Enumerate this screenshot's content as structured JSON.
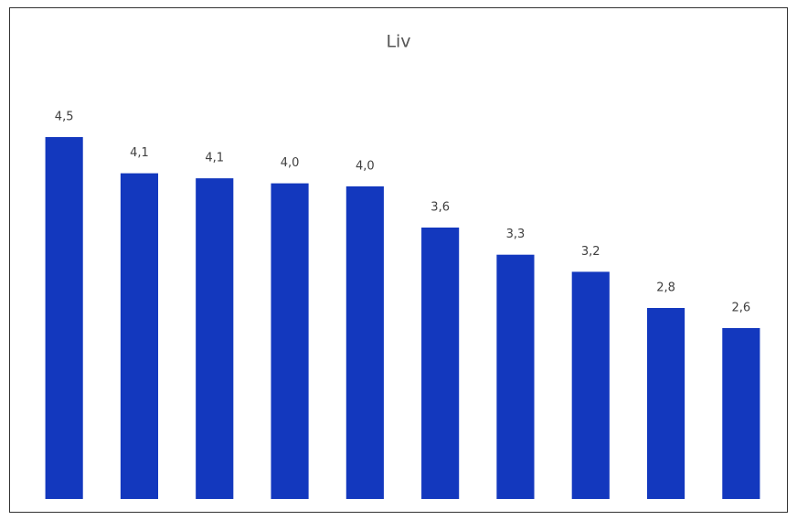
{
  "chart_data": {
    "type": "bar",
    "title": "Liv",
    "categories": [
      null,
      null,
      null,
      null,
      null,
      null,
      null,
      null,
      null,
      null
    ],
    "values": [
      4.5,
      4.14,
      4.09,
      4.04,
      4.01,
      3.6,
      3.33,
      3.16,
      2.8,
      2.6
    ],
    "value_labels": [
      "4,5",
      "4,1",
      "4,1",
      "4,0",
      "4,0",
      "3,6",
      "3,3",
      "3,2",
      "2,8",
      "2,6"
    ],
    "color": "#1338be",
    "ylim": [
      0.9,
      5
    ]
  }
}
